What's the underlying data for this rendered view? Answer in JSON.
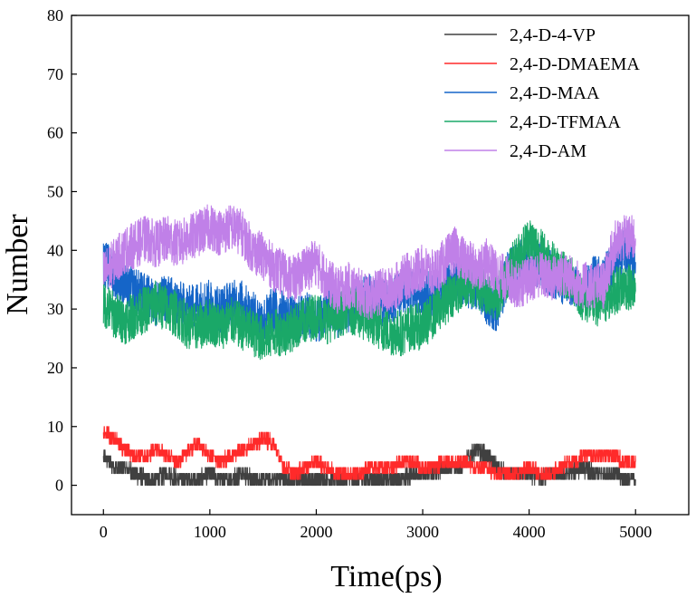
{
  "chart_data": {
    "type": "line",
    "xlabel": "Time(ps)",
    "ylabel": "Number",
    "xlim": [
      -300,
      5500
    ],
    "ylim": [
      -5,
      80
    ],
    "xticks": [
      0,
      1000,
      2000,
      3000,
      4000,
      5000
    ],
    "yticks": [
      0,
      10,
      20,
      30,
      40,
      50,
      60,
      70,
      80
    ],
    "legend_position": "top-right",
    "grid": false,
    "series": [
      {
        "name": "2,4-D-4-VP",
        "color": "#404040",
        "x": [
          0,
          100,
          200,
          300,
          400,
          500,
          600,
          700,
          800,
          900,
          1000,
          1100,
          1200,
          1300,
          1400,
          1500,
          1600,
          1700,
          1800,
          1900,
          2000,
          2100,
          2200,
          2300,
          2400,
          2500,
          2600,
          2700,
          2800,
          2900,
          3000,
          3100,
          3200,
          3300,
          3400,
          3500,
          3600,
          3700,
          3800,
          3900,
          4000,
          4100,
          4200,
          4300,
          4400,
          4500,
          4600,
          4700,
          4800,
          4900,
          5000
        ],
        "y": [
          5,
          3,
          3,
          2,
          1,
          1,
          2,
          1,
          1,
          1,
          2,
          1,
          1,
          2,
          1,
          1,
          1,
          1,
          1,
          1,
          1,
          1,
          1,
          1,
          1,
          1,
          1,
          1,
          1,
          2,
          2,
          2,
          3,
          3,
          4,
          6,
          5,
          3,
          2,
          2,
          2,
          1,
          2,
          2,
          2,
          3,
          2,
          2,
          2,
          1,
          1
        ],
        "noise": 1.4
      },
      {
        "name": "2,4-D-DMAEMA",
        "color": "#ff2a2a",
        "x": [
          0,
          100,
          200,
          300,
          400,
          500,
          600,
          700,
          800,
          900,
          1000,
          1100,
          1200,
          1300,
          1400,
          1500,
          1600,
          1700,
          1800,
          1900,
          2000,
          2100,
          2200,
          2300,
          2400,
          2500,
          2600,
          2700,
          2800,
          2900,
          3000,
          3100,
          3200,
          3300,
          3400,
          3500,
          3600,
          3700,
          3800,
          3900,
          4000,
          4100,
          4200,
          4300,
          4400,
          4500,
          4600,
          4700,
          4800,
          4900,
          5000
        ],
        "y": [
          9,
          8,
          6,
          5,
          5,
          6,
          5,
          4,
          6,
          7,
          5,
          4,
          5,
          6,
          7,
          8,
          7,
          3,
          2,
          3,
          4,
          3,
          2,
          2,
          2,
          3,
          3,
          3,
          4,
          4,
          3,
          3,
          4,
          4,
          4,
          3,
          3,
          2,
          2,
          2,
          3,
          2,
          2,
          3,
          4,
          5,
          5,
          5,
          5,
          4,
          4
        ],
        "noise": 1.2
      },
      {
        "name": "2,4-D-MAA",
        "color": "#1565c8",
        "x": [
          0,
          100,
          200,
          300,
          400,
          500,
          600,
          700,
          800,
          900,
          1000,
          1100,
          1200,
          1300,
          1400,
          1500,
          1600,
          1700,
          1800,
          1900,
          2000,
          2100,
          2200,
          2300,
          2400,
          2500,
          2600,
          2700,
          2800,
          2900,
          3000,
          3100,
          3200,
          3300,
          3400,
          3500,
          3600,
          3700,
          3800,
          3900,
          4000,
          4100,
          4200,
          4300,
          4400,
          4500,
          4600,
          4700,
          4800,
          4900,
          5000
        ],
        "y": [
          38,
          36,
          34,
          33,
          32,
          31,
          32,
          31,
          30,
          31,
          31,
          30,
          31,
          31,
          29,
          28,
          30,
          29,
          28,
          29,
          28,
          30,
          29,
          30,
          31,
          32,
          31,
          31,
          33,
          33,
          33,
          32,
          34,
          35,
          34,
          34,
          31,
          30,
          36,
          38,
          37,
          38,
          36,
          35,
          34,
          33,
          35,
          35,
          38,
          40,
          38
        ],
        "noise": 4
      },
      {
        "name": "2,4-D-TFMAA",
        "color": "#1aa868",
        "x": [
          0,
          100,
          200,
          300,
          400,
          500,
          600,
          700,
          800,
          900,
          1000,
          1100,
          1200,
          1300,
          1400,
          1500,
          1600,
          1700,
          1800,
          1900,
          2000,
          2100,
          2200,
          2300,
          2400,
          2500,
          2600,
          2700,
          2800,
          2900,
          3000,
          3100,
          3200,
          3300,
          3400,
          3500,
          3600,
          3700,
          3800,
          3900,
          4000,
          4100,
          4200,
          4300,
          4400,
          4500,
          4600,
          4700,
          4800,
          4900,
          5000
        ],
        "y": [
          31,
          29,
          28,
          29,
          30,
          31,
          30,
          29,
          27,
          27,
          28,
          27,
          28,
          27,
          26,
          25,
          26,
          26,
          27,
          28,
          29,
          28,
          29,
          30,
          29,
          28,
          27,
          26,
          26,
          27,
          27,
          29,
          31,
          33,
          34,
          34,
          33,
          32,
          36,
          39,
          42,
          40,
          38,
          36,
          35,
          32,
          31,
          31,
          33,
          34,
          33
        ],
        "noise": 4
      },
      {
        "name": "2,4-D-AM",
        "color": "#c080e8",
        "x": [
          0,
          100,
          200,
          300,
          400,
          500,
          600,
          700,
          800,
          900,
          1000,
          1100,
          1200,
          1300,
          1400,
          1500,
          1600,
          1700,
          1800,
          1900,
          2000,
          2100,
          2200,
          2300,
          2400,
          2500,
          2600,
          2700,
          2800,
          2900,
          3000,
          3100,
          3200,
          3300,
          3400,
          3500,
          3600,
          3700,
          3800,
          3900,
          4000,
          4100,
          4200,
          4300,
          4400,
          4500,
          4600,
          4700,
          4800,
          4900,
          5000
        ],
        "y": [
          36,
          38,
          40,
          41,
          42,
          41,
          42,
          41,
          42,
          43,
          44,
          43,
          44,
          43,
          40,
          39,
          37,
          36,
          35,
          37,
          38,
          35,
          33,
          34,
          33,
          32,
          33,
          33,
          35,
          36,
          37,
          36,
          38,
          40,
          38,
          37,
          38,
          36,
          35,
          34,
          35,
          36,
          35,
          36,
          35,
          34,
          34,
          34,
          41,
          42,
          42
        ],
        "noise": 4
      }
    ]
  }
}
